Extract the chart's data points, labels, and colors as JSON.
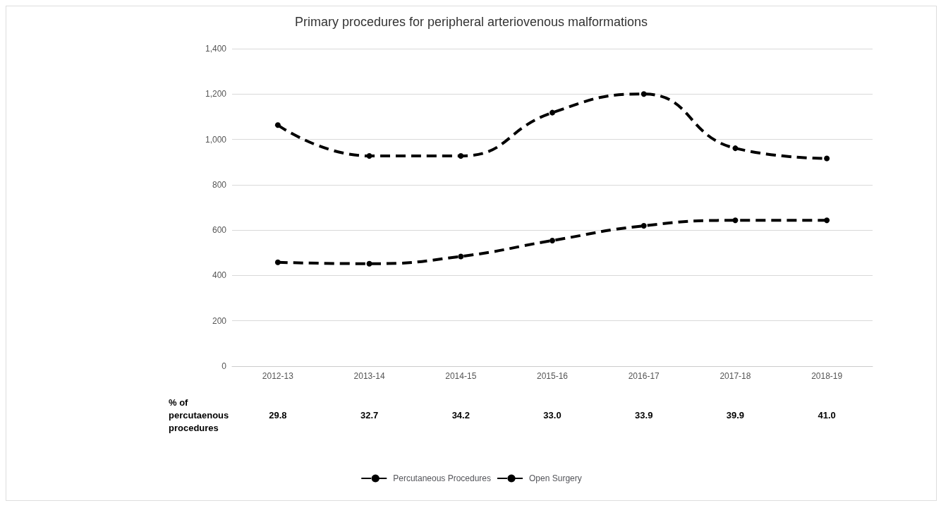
{
  "chart_data": {
    "type": "line",
    "title": "Primary procedures for peripheral arteriovenous malformations",
    "categories": [
      "2012-13",
      "2013-14",
      "2014-15",
      "2015-16",
      "2016-17",
      "2017-18",
      "2018-19"
    ],
    "series": [
      {
        "name": "Percutaneous Procedures",
        "color": "#000000",
        "line_style": "dashed",
        "values": [
          458,
          452,
          484,
          554,
          619,
          643,
          643
        ]
      },
      {
        "name": "Open Surgery",
        "color": "#000000",
        "line_style": "dashed",
        "values": [
          1063,
          927,
          927,
          1118,
          1200,
          961,
          916
        ]
      }
    ],
    "ylim": [
      0,
      1400
    ],
    "yticks": [
      0,
      200,
      400,
      600,
      800,
      {
        "value": 1000,
        "label": "1,000"
      },
      {
        "value": 1200,
        "label": "1,200"
      },
      {
        "value": 1400,
        "label": "1,400"
      }
    ],
    "grid": "y",
    "legend": "bottom",
    "marker": "circle",
    "annotations": [
      "% of\npercutaenous\nprocedures",
      "29.8",
      "32.7",
      "34.2",
      "33.0",
      "33.9",
      "39.9",
      "41.0"
    ]
  }
}
